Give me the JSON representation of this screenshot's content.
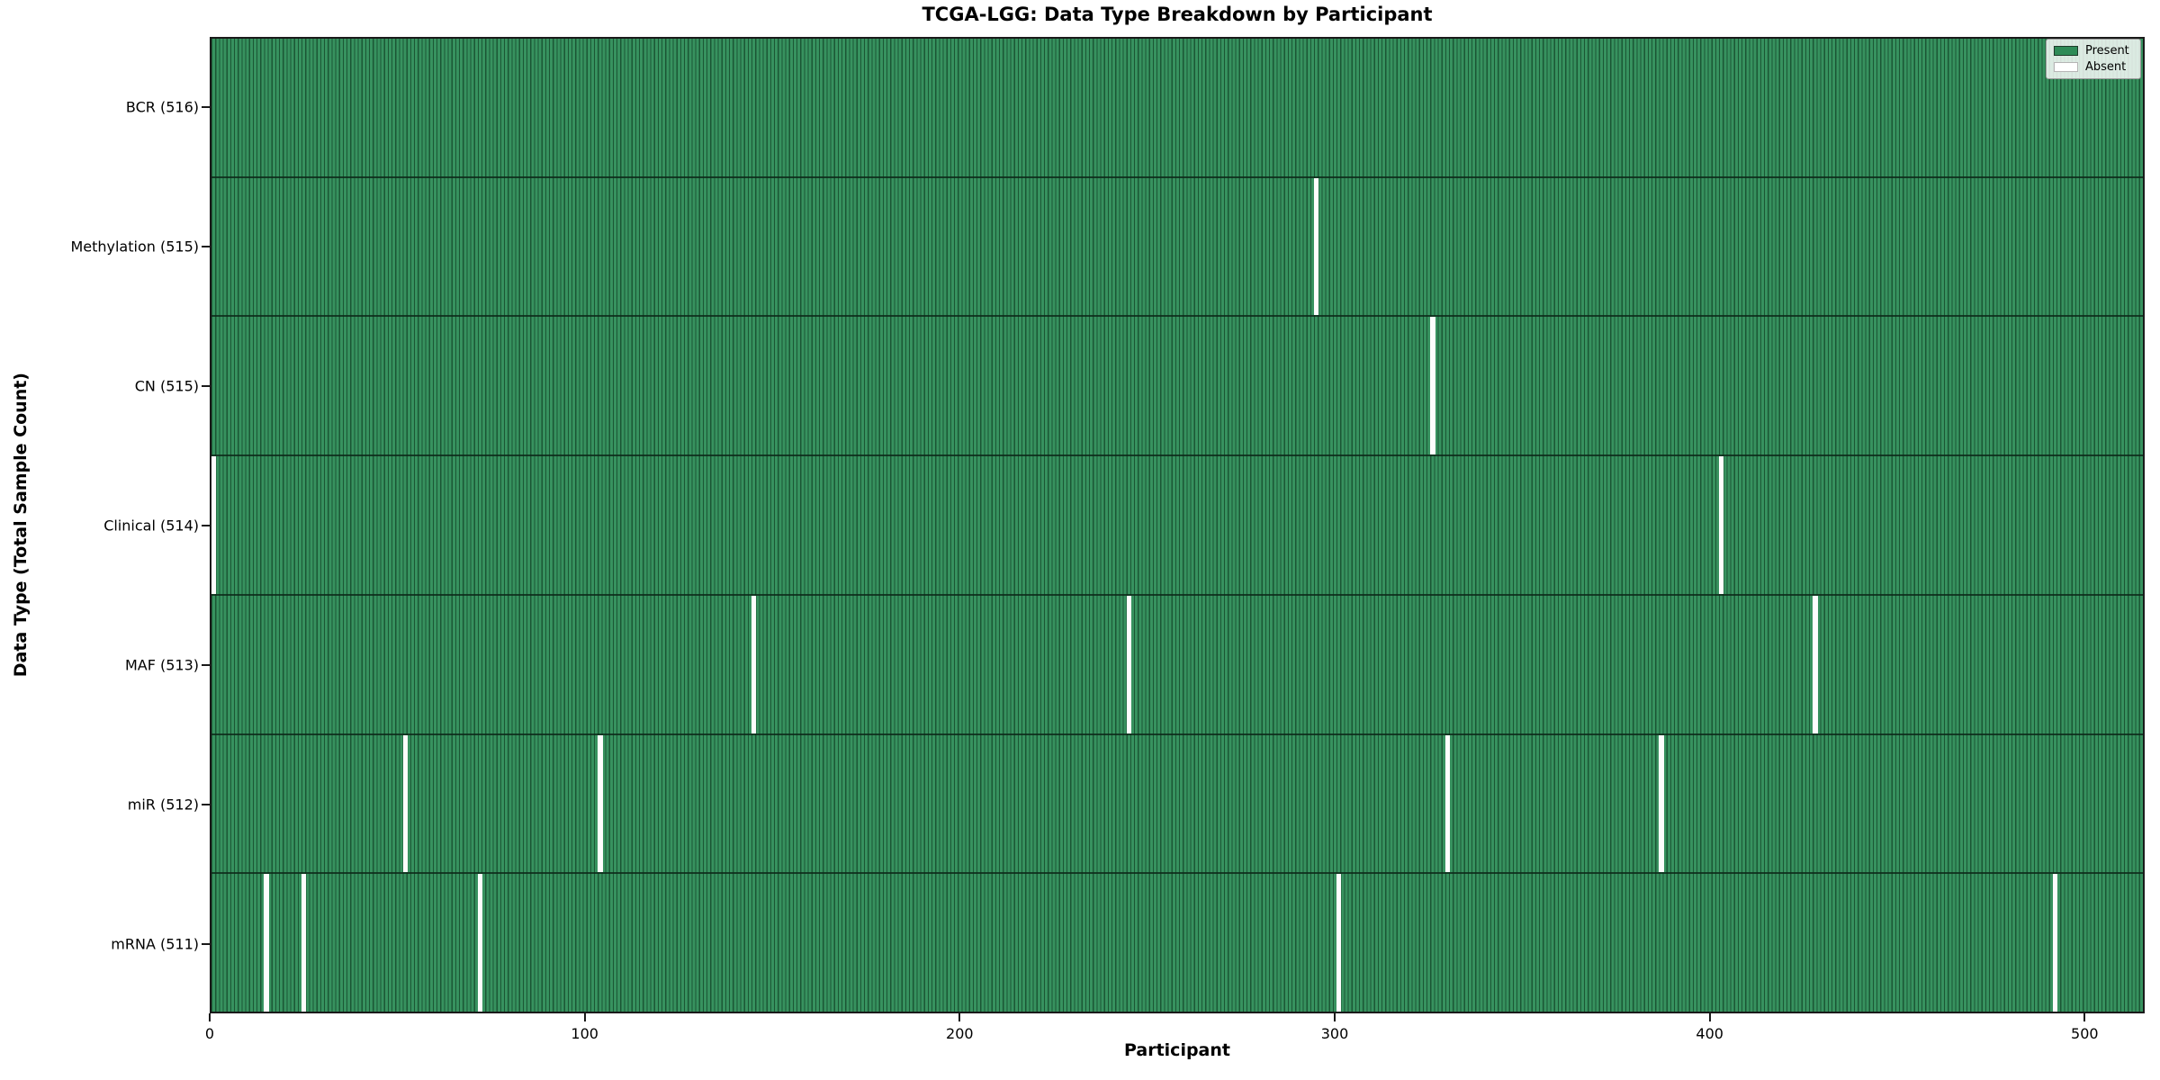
{
  "title": "TCGA-LGG: Data Type Breakdown by Participant",
  "xlabel": "Participant",
  "ylabel": "Data Type (Total Sample Count)",
  "legend": {
    "present_label": "Present",
    "absent_label": "Absent"
  },
  "colors": {
    "present_fill": "#37925f",
    "present_edge": "#1b5634",
    "legend_present_swatch": "#2e8b57",
    "absent": "#ffffff",
    "spine": "#1a1a1a"
  },
  "chart_data": {
    "type": "heatmap",
    "title": "TCGA-LGG: Data Type Breakdown by Participant",
    "xlabel": "Participant",
    "ylabel": "Data Type (Total Sample Count)",
    "legend_entries": [
      "Present",
      "Absent"
    ],
    "legend_position": "upper right",
    "n_participants": 516,
    "x_range": [
      0,
      516
    ],
    "x_ticks": [
      0,
      100,
      200,
      300,
      400,
      500
    ],
    "cell_values": "1 = present (green), 0 = absent (white); all cells present except listed absent indices",
    "rows": [
      {
        "name": "BCR",
        "label": "BCR (516)",
        "total": 516,
        "absent_participants": []
      },
      {
        "name": "Methylation",
        "label": "Methylation (515)",
        "total": 515,
        "absent_participants": [
          294
        ]
      },
      {
        "name": "CN",
        "label": "CN (515)",
        "total": 515,
        "absent_participants": [
          325
        ]
      },
      {
        "name": "Clinical",
        "label": "Clinical (514)",
        "total": 514,
        "absent_participants": [
          0,
          402
        ]
      },
      {
        "name": "MAF",
        "label": "MAF (513)",
        "total": 513,
        "absent_participants": [
          144,
          244,
          427
        ]
      },
      {
        "name": "miR",
        "label": "miR (512)",
        "total": 512,
        "absent_participants": [
          51,
          103,
          329,
          386
        ]
      },
      {
        "name": "mRNA",
        "label": "mRNA (511)",
        "total": 511,
        "absent_participants": [
          14,
          24,
          71,
          300,
          491
        ]
      }
    ]
  }
}
